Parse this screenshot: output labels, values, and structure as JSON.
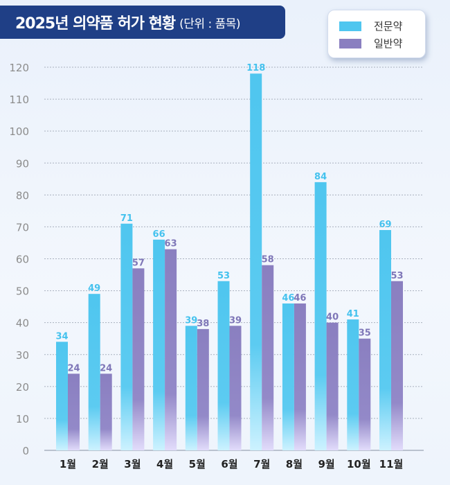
{
  "header": {
    "title": "2025년 의약품 허가 현황",
    "unit": "(단위 : 품목)"
  },
  "colors": {
    "banner": "#1f3f86",
    "series_0": "#4fc6ef",
    "series_1": "#8a7fc0",
    "label_0": "#45c2ee",
    "label_1": "#7f77b8"
  },
  "chart_data": {
    "type": "bar",
    "title": "2025년 의약품 허가 현황",
    "unit": "(단위 : 품목)",
    "xlabel": "",
    "ylabel": "",
    "ylim": [
      0,
      120
    ],
    "yticks": [
      0,
      10,
      20,
      30,
      40,
      50,
      60,
      70,
      80,
      90,
      100,
      110,
      120
    ],
    "grid": true,
    "legend": "top-right",
    "categories": [
      "1월",
      "2월",
      "3월",
      "4월",
      "5월",
      "6월",
      "7월",
      "8월",
      "9월",
      "10월",
      "11월"
    ],
    "series": [
      {
        "name": "전문약",
        "values": [
          34,
          49,
          71,
          66,
          39,
          53,
          118,
          46,
          84,
          41,
          69
        ]
      },
      {
        "name": "일반약",
        "values": [
          24,
          24,
          57,
          63,
          38,
          39,
          58,
          46,
          40,
          35,
          53
        ]
      }
    ]
  }
}
